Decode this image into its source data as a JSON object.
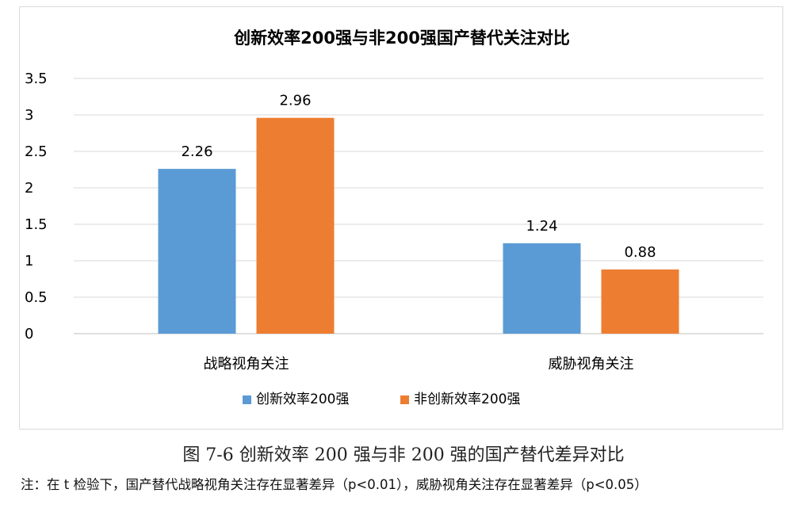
{
  "chart_data": {
    "type": "bar",
    "title": "创新效率200强与非200强国产替代关注对比",
    "categories": [
      "战略视角关注",
      "威胁视角关注"
    ],
    "series": [
      {
        "name": "创新效率200强",
        "values": [
          2.26,
          1.24
        ],
        "color": "#5b9bd5"
      },
      {
        "name": "非创新效率200强",
        "values": [
          2.96,
          0.88
        ],
        "color": "#ed7d31"
      }
    ],
    "ylim": [
      0,
      3.5
    ],
    "yticks": [
      "0",
      "0.5",
      "1",
      "1.5",
      "2",
      "2.5",
      "3",
      "3.5"
    ],
    "grid": true,
    "legend_position": "bottom"
  },
  "caption": "图 7-6  创新效率 200 强与非 200 强的国产替代差异对比",
  "note": "注：在 t 检验下，国产替代战略视角关注存在显著差异（p<0.01），威胁视角关注存在显著差异（p<0.05）"
}
